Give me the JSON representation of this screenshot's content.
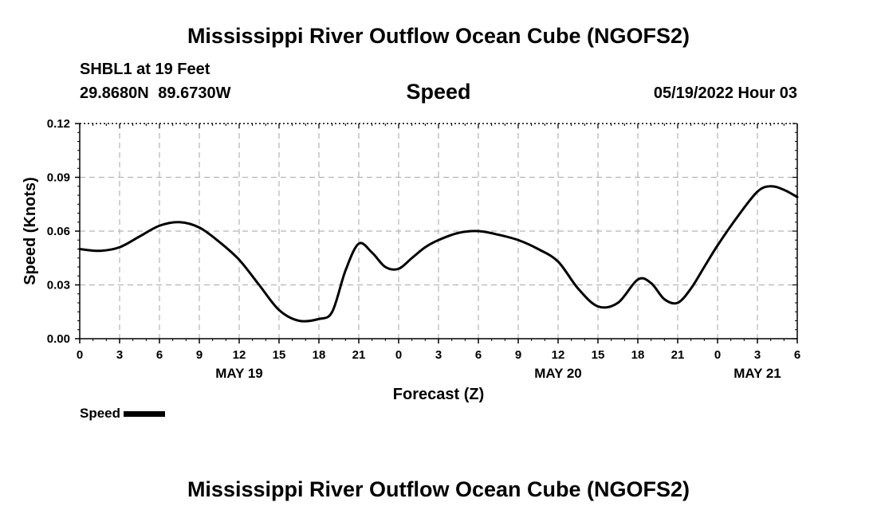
{
  "header": {
    "title": "Mississippi River Outflow Ocean Cube (NGOFS2)",
    "station": "SHBL1 at 19 Feet",
    "coordinates": "29.8680N 89.6730W",
    "subtitle": "Speed",
    "datetime": "05/19/2022 Hour 03"
  },
  "footer": {
    "title": "Mississippi River Outflow Ocean Cube (NGOFS2)"
  },
  "legend": {
    "label": "Speed"
  },
  "chart_data": {
    "type": "line",
    "title": "Speed",
    "xlabel": "Forecast (Z)",
    "ylabel": "Speed (Knots)",
    "x_units": "hours from May 19 00Z",
    "xlim": [
      0,
      54
    ],
    "ylim": [
      0,
      0.12
    ],
    "yticks": [
      "0.00",
      "0.03",
      "0.06",
      "0.09",
      "0.12"
    ],
    "ytick_values": [
      0,
      0.03,
      0.06,
      0.09,
      0.12
    ],
    "xtick_values": [
      0,
      3,
      6,
      9,
      12,
      15,
      18,
      21,
      24,
      27,
      30,
      33,
      36,
      39,
      42,
      45,
      48,
      51,
      54
    ],
    "xtick_labels": [
      "0",
      "3",
      "6",
      "9",
      "12",
      "15",
      "18",
      "21",
      "0",
      "3",
      "6",
      "9",
      "12",
      "15",
      "18",
      "21",
      "0",
      "3",
      "6"
    ],
    "date_labels": [
      {
        "label": "MAY 19",
        "x": 12
      },
      {
        "label": "MAY 20",
        "x": 36
      },
      {
        "label": "MAY 21",
        "x": 51
      }
    ],
    "grid": true,
    "series": [
      {
        "name": "Speed",
        "color": "#000000",
        "x": [
          0,
          1.5,
          3,
          4.5,
          6,
          7.5,
          9,
          10.5,
          12,
          13.5,
          15,
          16.5,
          18,
          19,
          20,
          21,
          22,
          23,
          24,
          25,
          26,
          27,
          28.5,
          30,
          31.5,
          33,
          34.5,
          36,
          37.5,
          39,
          40.5,
          42,
          43,
          44,
          45,
          46,
          47,
          48,
          49.5,
          51,
          52,
          53,
          54
        ],
        "y": [
          0.05,
          0.049,
          0.051,
          0.057,
          0.063,
          0.065,
          0.062,
          0.054,
          0.044,
          0.03,
          0.016,
          0.01,
          0.011,
          0.015,
          0.038,
          0.053,
          0.048,
          0.04,
          0.039,
          0.045,
          0.051,
          0.055,
          0.059,
          0.06,
          0.058,
          0.055,
          0.05,
          0.043,
          0.028,
          0.018,
          0.02,
          0.033,
          0.031,
          0.022,
          0.02,
          0.028,
          0.04,
          0.052,
          0.068,
          0.082,
          0.085,
          0.083,
          0.079
        ]
      }
    ]
  }
}
